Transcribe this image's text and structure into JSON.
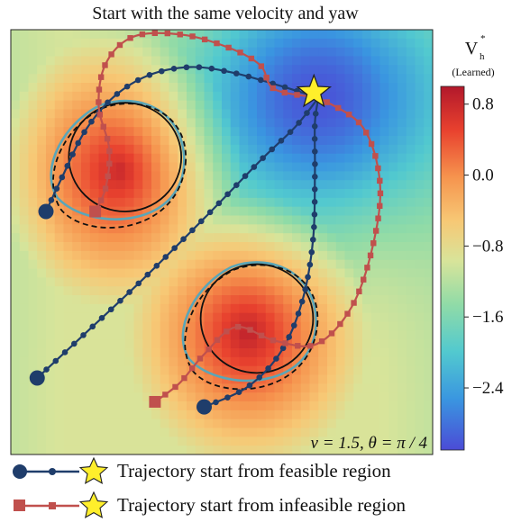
{
  "chart_data": {
    "type": "heatmap",
    "title": "Start with the same velocity and yaw",
    "annotation": "v = 1.5, θ = π / 4",
    "colorbar": {
      "label_main": "V",
      "label_sub": "h",
      "label_sup": "*",
      "label_note": "(Learned)",
      "ticks": [
        "0.8",
        "0.0",
        "−0.8",
        "−1.6",
        "−2.4"
      ],
      "tick_values": [
        0.8,
        0.0,
        -0.8,
        -1.6,
        -2.4
      ],
      "range": [
        -3.1,
        1.0
      ]
    },
    "obstacles": [
      {
        "cx": -0.55,
        "cy": 0.5,
        "r": 0.32
      },
      {
        "cx": 0.2,
        "cy": -0.45,
        "r": 0.32
      }
    ],
    "field_peaks": [
      {
        "cx": -0.58,
        "cy": 0.42,
        "amp": 1.0
      },
      {
        "cx": 0.15,
        "cy": -0.53,
        "amp": 1.0
      }
    ],
    "goal": [
      0.55,
      0.85
    ],
    "series": [
      {
        "name": "Trajectory start from feasible region",
        "color": "#1f3d6b",
        "marker": "circle",
        "trajectories": [
          [
            [
              -1.0,
              0.18
            ],
            [
              -0.9,
              0.4
            ],
            [
              -0.78,
              0.65
            ],
            [
              -0.62,
              0.85
            ],
            [
              -0.42,
              0.98
            ],
            [
              -0.18,
              1.03
            ],
            [
              0.05,
              1.0
            ],
            [
              0.3,
              0.93
            ],
            [
              0.55,
              0.85
            ]
          ],
          [
            [
              -1.05,
              -0.8
            ],
            [
              -0.8,
              -0.56
            ],
            [
              -0.45,
              -0.22
            ],
            [
              -0.1,
              0.14
            ],
            [
              0.22,
              0.48
            ],
            [
              0.42,
              0.68
            ],
            [
              0.55,
              0.85
            ]
          ],
          [
            [
              -0.1,
              -0.97
            ],
            [
              0.15,
              -0.85
            ],
            [
              0.34,
              -0.64
            ],
            [
              0.46,
              -0.34
            ],
            [
              0.52,
              0.02
            ],
            [
              0.53,
              0.4
            ],
            [
              0.53,
              0.7
            ],
            [
              0.55,
              0.85
            ]
          ]
        ]
      },
      {
        "name": "Trajectory start from infeasible region",
        "color": "#c0504d",
        "marker": "square",
        "trajectories": [
          [
            [
              -0.72,
              0.18
            ],
            [
              -0.66,
              0.32
            ],
            [
              -0.64,
              0.55
            ],
            [
              -0.7,
              0.8
            ],
            [
              -0.66,
              1.05
            ],
            [
              -0.5,
              1.21
            ],
            [
              -0.22,
              1.22
            ],
            [
              0.05,
              1.14
            ],
            [
              0.22,
              1.04
            ],
            [
              0.3,
              0.9
            ],
            [
              0.55,
              0.85
            ]
          ],
          [
            [
              -0.38,
              -0.94
            ],
            [
              -0.24,
              -0.83
            ],
            [
              -0.1,
              -0.66
            ],
            [
              0.08,
              -0.5
            ],
            [
              0.3,
              -0.58
            ],
            [
              0.54,
              -0.6
            ],
            [
              0.74,
              -0.38
            ],
            [
              0.86,
              -0.02
            ],
            [
              0.9,
              0.35
            ],
            [
              0.8,
              0.68
            ],
            [
              0.55,
              0.85
            ]
          ]
        ]
      }
    ],
    "legend": [
      {
        "label": "Trajectory start from feasible region"
      },
      {
        "label": "Trajectory start from infeasible region"
      }
    ]
  }
}
